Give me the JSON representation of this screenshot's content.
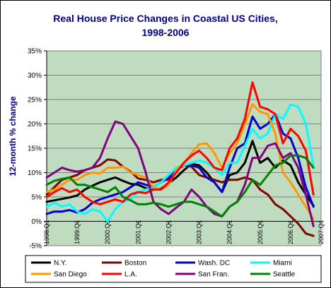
{
  "chart_data": {
    "type": "line",
    "title_line1": "Real House Price Changes in Coastal US Cities,",
    "title_line2": "1998-2006",
    "ylabel": "12-month % change",
    "xlabel": "",
    "ylim": [
      -5,
      35
    ],
    "yticks": [
      "-5%",
      "0%",
      "5%",
      "10%",
      "15%",
      "20%",
      "25%",
      "30%",
      "35%"
    ],
    "ytick_values": [
      -5,
      0,
      5,
      10,
      15,
      20,
      25,
      30,
      35
    ],
    "xlim": [
      1998.0,
      2007.0
    ],
    "xtick_labels": [
      "1998:Q1",
      "1999:Q1",
      "2000:Q1",
      "2001:Q1",
      "2002:Q1",
      "2003:Q1",
      "2004:Q1",
      "2005:Q1",
      "2006:Q1",
      "2007:Q1"
    ],
    "xtick_values": [
      1998,
      1999,
      2000,
      2001,
      2002,
      2003,
      2004,
      2005,
      2006,
      2007
    ],
    "grid": "horizontal",
    "legend_position": "bottom",
    "plot_background": "#c0dcc0",
    "x": [
      1998.0,
      1998.25,
      1998.5,
      1998.75,
      1999.0,
      1999.25,
      1999.5,
      1999.75,
      2000.0,
      2000.25,
      2000.5,
      2000.75,
      2001.0,
      2001.25,
      2001.5,
      2001.75,
      2002.0,
      2002.25,
      2002.5,
      2002.75,
      2003.0,
      2003.25,
      2003.5,
      2003.75,
      2004.0,
      2004.25,
      2004.5,
      2004.75,
      2005.0,
      2005.25,
      2005.5,
      2005.75,
      2006.0,
      2006.25,
      2006.5,
      2006.75
    ],
    "series": [
      {
        "name": "N.Y.",
        "color": "#000000",
        "values": [
          4.0,
          4.3,
          4.6,
          4.9,
          5.3,
          6.5,
          7.3,
          8.0,
          8.5,
          9.0,
          8.3,
          7.7,
          7.5,
          6.8,
          6.5,
          6.7,
          7.8,
          9.0,
          10.5,
          11.8,
          11.5,
          10.0,
          8.0,
          6.0,
          9.5,
          10.0,
          12.0,
          16.5,
          12.0,
          13.0,
          11.0,
          12.5,
          11.5,
          8.0,
          5.5,
          3.2
        ]
      },
      {
        "name": "Boston",
        "color": "#800000",
        "values": [
          5.5,
          7.0,
          8.5,
          9.0,
          9.5,
          10.5,
          11.0,
          11.5,
          12.7,
          12.5,
          11.2,
          10.2,
          8.8,
          8.5,
          8.0,
          8.5,
          8.5,
          10.8,
          11.5,
          11.2,
          9.5,
          9.0,
          8.5,
          8.0,
          8.5,
          8.5,
          9.0,
          8.5,
          6.5,
          5.5,
          3.5,
          2.5,
          1.0,
          -0.5,
          -2.5,
          -3.0
        ]
      },
      {
        "name": "Wash. DC",
        "color": "#0000cc",
        "values": [
          1.5,
          2.0,
          2.0,
          2.3,
          1.8,
          2.5,
          3.8,
          4.5,
          5.0,
          5.5,
          6.0,
          7.0,
          8.0,
          7.5,
          7.0,
          8.0,
          9.0,
          10.5,
          11.5,
          11.5,
          11.0,
          9.0,
          8.0,
          6.0,
          11.0,
          15.0,
          16.0,
          21.5,
          19.0,
          20.0,
          22.0,
          18.0,
          17.0,
          13.0,
          7.0,
          3.0
        ]
      },
      {
        "name": "Miami",
        "color": "#00ffff",
        "values": [
          3.0,
          3.8,
          3.0,
          3.5,
          2.0,
          1.5,
          2.5,
          2.0,
          0.0,
          2.5,
          4.0,
          4.5,
          6.0,
          6.5,
          7.0,
          8.0,
          9.5,
          11.0,
          11.5,
          12.0,
          12.5,
          12.0,
          11.0,
          9.5,
          12.0,
          12.0,
          15.5,
          19.0,
          17.0,
          18.0,
          22.0,
          21.0,
          24.0,
          23.5,
          20.0,
          11.5
        ]
      },
      {
        "name": "San Diego",
        "color": "#ff9900",
        "values": [
          6.0,
          6.5,
          7.5,
          8.5,
          8.5,
          9.5,
          10.0,
          9.8,
          11.0,
          11.0,
          11.2,
          10.0,
          9.5,
          9.0,
          7.0,
          6.5,
          7.5,
          10.5,
          12.0,
          14.0,
          15.8,
          16.0,
          14.0,
          11.0,
          14.0,
          16.0,
          20.0,
          24.0,
          22.5,
          22.0,
          18.0,
          10.0,
          8.0,
          5.5,
          3.0,
          0.5
        ]
      },
      {
        "name": "L.A.",
        "color": "#ff0000",
        "values": [
          5.0,
          6.0,
          6.8,
          6.0,
          6.5,
          5.0,
          4.0,
          3.5,
          4.0,
          4.5,
          4.0,
          5.5,
          6.0,
          5.8,
          6.5,
          6.5,
          8.0,
          10.0,
          12.0,
          13.5,
          14.5,
          13.0,
          11.0,
          10.5,
          15.0,
          17.0,
          21.0,
          28.5,
          23.5,
          23.0,
          22.0,
          16.0,
          19.0,
          17.5,
          14.5,
          5.5
        ]
      },
      {
        "name": "San Fran.",
        "color": "#800080",
        "values": [
          9.0,
          10.0,
          11.0,
          10.5,
          10.2,
          10.5,
          11.0,
          13.0,
          17.0,
          20.5,
          20.0,
          17.5,
          15.0,
          10.0,
          4.0,
          2.5,
          1.5,
          2.8,
          4.0,
          6.5,
          5.0,
          3.0,
          1.5,
          1.0,
          3.0,
          4.0,
          7.5,
          13.0,
          13.0,
          15.5,
          16.0,
          13.0,
          14.0,
          11.0,
          5.5,
          -1.0
        ]
      },
      {
        "name": "Seattle",
        "color": "#008000",
        "values": [
          7.5,
          8.3,
          8.7,
          9.0,
          7.5,
          7.5,
          7.0,
          6.5,
          6.0,
          7.0,
          5.0,
          4.3,
          3.5,
          3.5,
          3.8,
          3.5,
          3.0,
          3.5,
          4.0,
          4.0,
          3.5,
          3.0,
          2.0,
          1.0,
          3.0,
          4.0,
          6.0,
          8.5,
          7.5,
          9.5,
          11.5,
          12.0,
          13.5,
          13.5,
          13.0,
          11.0
        ]
      }
    ]
  }
}
